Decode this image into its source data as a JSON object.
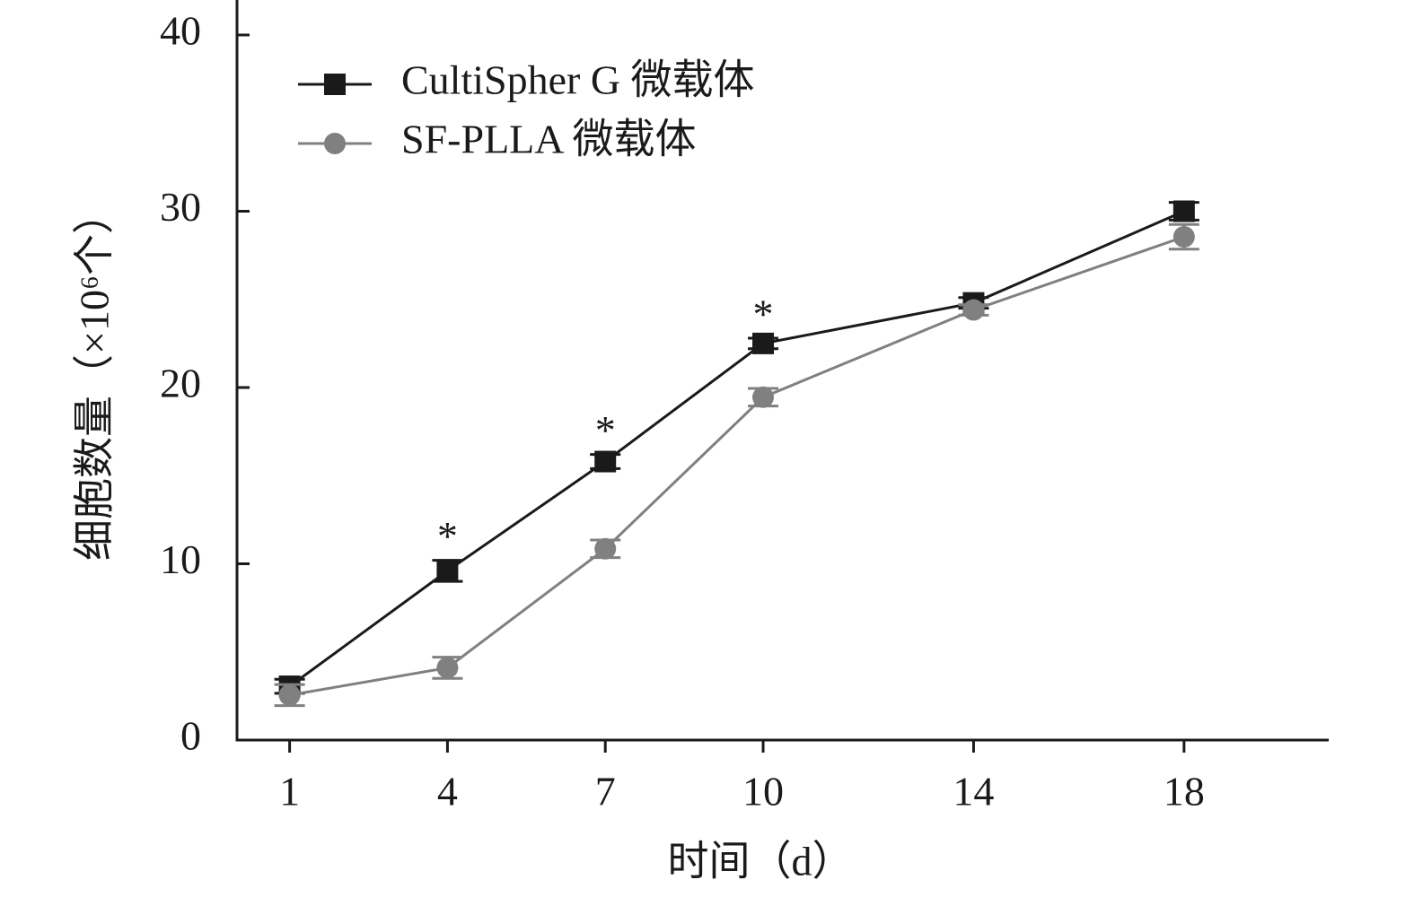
{
  "chart_data": {
    "type": "line",
    "x_label": "时间（d）",
    "y_label": "细胞数量（×10⁶个）",
    "x": [
      1,
      4,
      7,
      10,
      14,
      18
    ],
    "xlim": [
      0,
      20.75
    ],
    "xticks": [
      1,
      4,
      7,
      10,
      14,
      18
    ],
    "ylim": [
      0,
      40
    ],
    "yticks": [
      0,
      10,
      20,
      30,
      40
    ],
    "series": [
      {
        "name": "CultiSpher G 微载体",
        "color": "#1a1a1a",
        "marker": "square",
        "values": [
          3.05,
          9.6,
          15.8,
          22.5,
          24.8,
          30.0
        ],
        "errors": [
          0.4,
          0.6,
          0.4,
          0.3,
          0.3,
          0.5
        ]
      },
      {
        "name": "SF-PLLA 微载体",
        "color": "#808080",
        "marker": "circle",
        "values": [
          2.55,
          4.1,
          10.85,
          19.45,
          24.4,
          28.55
        ],
        "errors": [
          0.6,
          0.6,
          0.5,
          0.5,
          0.3,
          0.7
        ]
      }
    ],
    "annotations": [
      {
        "x": 4,
        "text": "*"
      },
      {
        "x": 7,
        "text": "*"
      },
      {
        "x": 10,
        "text": "*"
      }
    ]
  }
}
